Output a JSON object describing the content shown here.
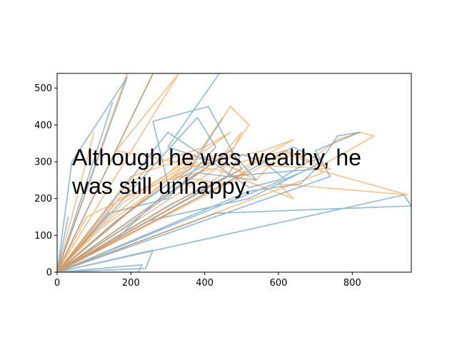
{
  "chart_data": {
    "type": "line",
    "title": "",
    "xlabel": "",
    "ylabel": "",
    "xlim": [
      0,
      960
    ],
    "ylim": [
      0,
      540
    ],
    "x_ticks": [
      "0",
      "200",
      "400",
      "600",
      "800"
    ],
    "y_ticks": [
      "0",
      "100",
      "200",
      "300",
      "400",
      "500"
    ],
    "grid": false,
    "legend": "none",
    "annotation_lines": [
      "Although he was wealthy, he",
      "was still unhappy."
    ],
    "series": [
      {
        "color": "#1f77b4",
        "alpha": 0.5,
        "x": [
          0,
          30,
          0,
          150,
          0,
          190,
          40,
          0,
          260,
          400,
          440,
          300,
          420,
          520,
          600,
          680,
          720,
          760,
          820,
          700,
          740,
          0,
          940,
          960,
          430,
          0,
          520,
          660,
          700,
          460,
          0,
          260,
          240,
          0,
          230,
          220,
          0,
          300,
          460,
          500,
          560,
          620,
          660,
          0,
          140,
          300,
          430,
          380,
          0,
          250,
          520,
          720,
          640,
          0,
          160,
          340,
          420,
          300,
          0,
          180,
          330,
          470,
          540,
          380,
          0,
          200,
          300,
          260,
          410,
          500,
          0,
          160,
          360,
          450
        ],
        "y": [
          0,
          150,
          0,
          460,
          0,
          530,
          300,
          0,
          540,
          540,
          540,
          340,
          300,
          230,
          250,
          300,
          310,
          370,
          380,
          330,
          260,
          0,
          210,
          180,
          160,
          0,
          220,
          240,
          280,
          260,
          0,
          60,
          10,
          0,
          20,
          0,
          0,
          180,
          260,
          320,
          300,
          250,
          270,
          0,
          160,
          200,
          340,
          420,
          0,
          140,
          200,
          300,
          340,
          0,
          90,
          260,
          300,
          380,
          0,
          120,
          230,
          330,
          250,
          270,
          0,
          170,
          240,
          410,
          450,
          280,
          0,
          140,
          280,
          420
        ]
      },
      {
        "color": "#ff7f0e",
        "alpha": 0.5,
        "x": [
          0,
          100,
          0,
          190,
          0,
          260,
          0,
          330,
          160,
          420,
          460,
          540,
          610,
          680,
          760,
          820,
          860,
          700,
          950,
          600,
          640,
          430,
          0,
          200,
          380,
          470,
          520,
          480,
          0,
          120,
          300,
          620,
          740,
          560,
          0,
          80,
          240,
          350,
          450,
          500,
          440,
          0,
          170,
          320,
          460,
          540,
          660,
          720,
          0,
          140,
          250,
          400,
          470,
          360,
          0,
          90,
          210,
          330,
          560,
          640,
          0,
          270,
          380,
          300,
          420,
          510,
          0,
          180,
          290,
          350
        ],
        "y": [
          0,
          380,
          0,
          540,
          0,
          540,
          0,
          540,
          330,
          280,
          290,
          250,
          330,
          300,
          360,
          380,
          370,
          280,
          210,
          240,
          200,
          280,
          0,
          260,
          320,
          450,
          400,
          340,
          0,
          120,
          250,
          330,
          280,
          290,
          0,
          150,
          230,
          300,
          320,
          380,
          260,
          0,
          200,
          260,
          240,
          300,
          320,
          270,
          0,
          170,
          290,
          340,
          380,
          300,
          0,
          100,
          200,
          280,
          330,
          360,
          0,
          230,
          300,
          250,
          310,
          270,
          0,
          190,
          260,
          310
        ]
      }
    ]
  }
}
